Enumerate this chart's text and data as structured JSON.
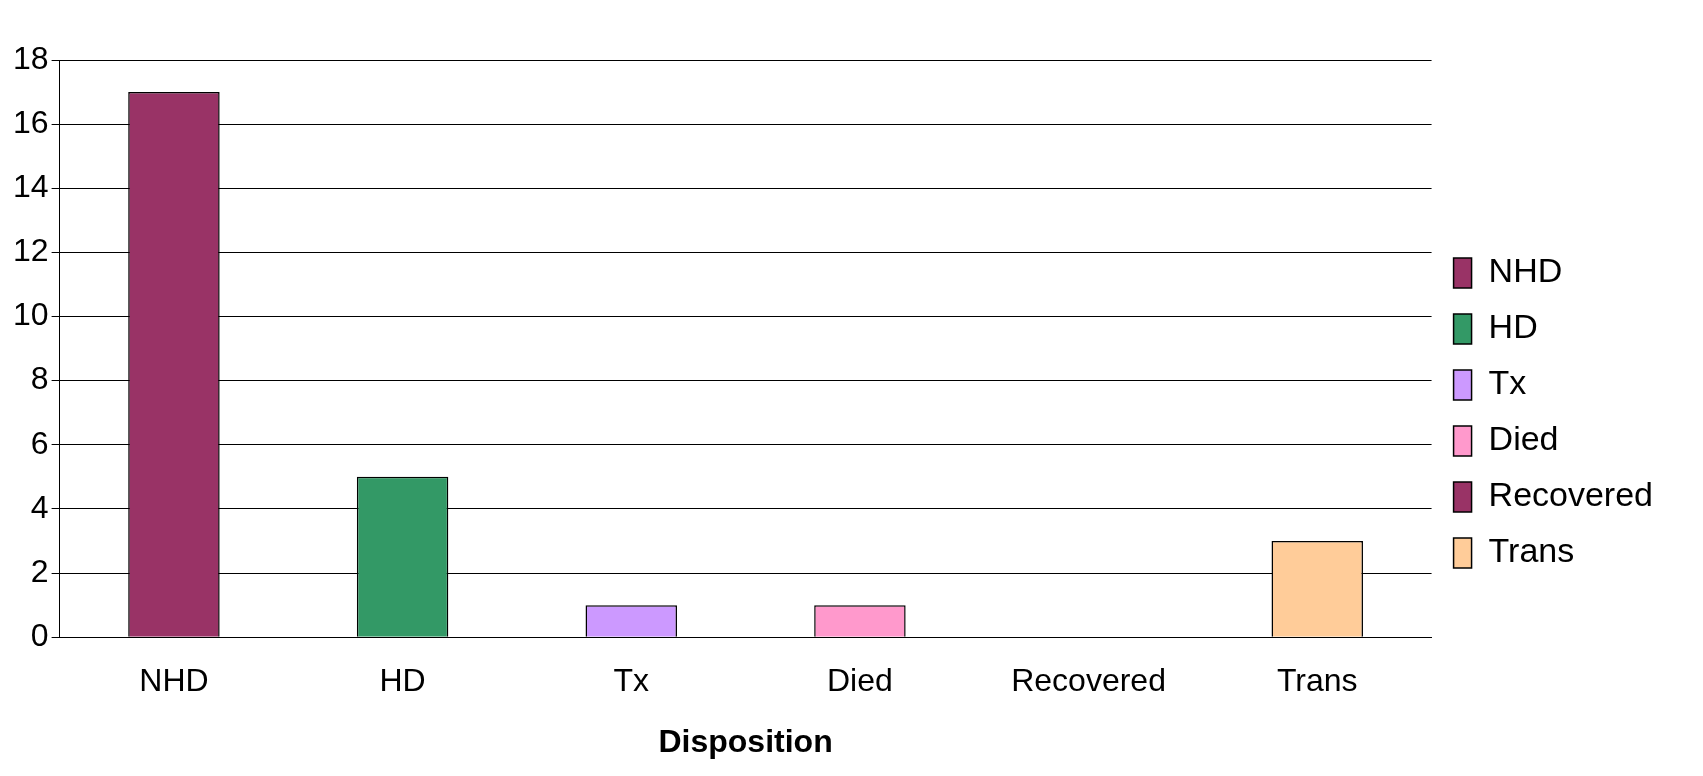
{
  "chart_data": {
    "type": "bar",
    "xlabel": "Disposition",
    "categories": [
      "NHD",
      "HD",
      "Tx",
      "Died",
      "Recovered",
      "Trans"
    ],
    "series": [
      {
        "name": "NHD",
        "color": "#993366",
        "values": [
          17,
          null,
          null,
          null,
          null,
          null
        ]
      },
      {
        "name": "HD",
        "color": "#339966",
        "values": [
          null,
          5,
          null,
          null,
          null,
          null
        ]
      },
      {
        "name": "Tx",
        "color": "#cc99ff",
        "values": [
          null,
          null,
          1,
          null,
          null,
          null
        ]
      },
      {
        "name": "Died",
        "color": "#ff99cc",
        "values": [
          null,
          null,
          null,
          1,
          null,
          null
        ]
      },
      {
        "name": "Recovered",
        "color": "#993366",
        "values": [
          null,
          null,
          null,
          null,
          0,
          null
        ]
      },
      {
        "name": "Trans",
        "color": "#ffcc99",
        "values": [
          null,
          null,
          null,
          null,
          null,
          3
        ]
      }
    ],
    "ylim": [
      0,
      18
    ],
    "yticks": [
      0,
      2,
      4,
      6,
      8,
      10,
      12,
      14,
      16,
      18
    ],
    "grid": "y",
    "legend": "right"
  }
}
